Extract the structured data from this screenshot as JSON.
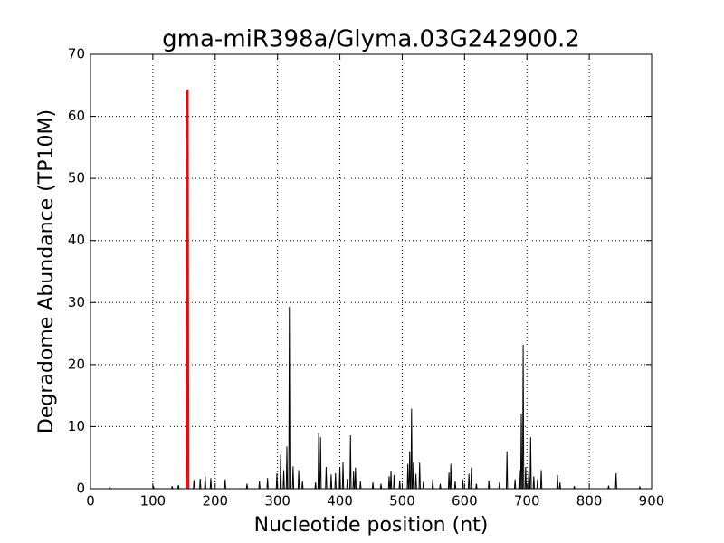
{
  "chart_data": {
    "type": "line",
    "title": "gma-miR398a/Glyma.03G242900.2",
    "x_label": "Nucleotide position (nt)",
    "y_label": "Degradome Abundance (TP10M)",
    "xlim": [
      0,
      900
    ],
    "xticks": [
      0,
      100,
      200,
      300,
      400,
      500,
      600,
      700,
      800,
      900
    ],
    "ylim": [
      0,
      70
    ],
    "yticks": [
      0,
      10,
      20,
      30,
      40,
      50,
      60,
      70
    ],
    "grid": true,
    "series": [
      {
        "color": "#000000",
        "x": [
          1,
          30,
          31,
          32,
          100,
          101,
          102,
          130,
          131,
          132,
          140,
          141,
          142,
          165,
          166,
          167,
          175,
          176,
          177,
          183,
          184,
          185,
          192,
          193,
          194,
          215,
          216,
          217,
          250,
          251,
          252,
          270,
          271,
          272,
          283,
          284,
          285,
          298,
          299,
          300,
          304,
          305,
          306,
          309,
          310,
          311,
          314,
          315,
          316,
          318,
          319,
          320,
          324,
          325,
          326,
          333,
          334,
          335,
          339,
          340,
          341,
          360,
          361,
          362,
          365,
          366,
          367,
          368,
          369,
          370,
          377,
          378,
          379,
          385,
          386,
          387,
          392,
          393,
          394,
          399,
          400,
          401,
          404,
          405,
          406,
          411,
          412,
          413,
          416,
          417,
          418,
          421,
          422,
          423,
          424,
          425,
          426,
          432,
          433,
          434,
          452,
          453,
          454,
          465,
          466,
          467,
          478,
          479,
          480,
          481,
          482,
          483,
          486,
          487,
          488,
          495,
          496,
          497,
          508,
          509,
          510,
          511,
          512,
          513,
          514,
          515,
          516,
          517,
          518,
          519,
          521,
          522,
          523,
          527,
          528,
          529,
          533,
          534,
          535,
          548,
          549,
          550,
          560,
          561,
          562,
          574,
          575,
          576,
          577,
          578,
          579,
          584,
          585,
          586,
          596,
          597,
          598,
          606,
          607,
          608,
          610,
          611,
          612,
          618,
          619,
          620,
          638,
          639,
          640,
          655,
          656,
          657,
          667,
          668,
          669,
          680,
          681,
          682,
          687,
          688,
          689,
          690,
          691,
          692,
          693,
          694,
          695,
          697,
          698,
          699,
          702,
          703,
          704,
          705,
          706,
          707,
          710,
          711,
          712,
          716,
          717,
          718,
          722,
          723,
          724,
          748,
          749,
          750,
          752,
          753,
          754,
          775,
          776,
          777,
          830,
          831,
          832,
          842,
          843,
          844,
          880,
          881,
          882,
          897
        ],
        "values": [
          0,
          0,
          0.3,
          0,
          0,
          0.4,
          0,
          0,
          0.4,
          0,
          0,
          0.6,
          0,
          0,
          1.4,
          0,
          0,
          1.6,
          0,
          0,
          2.0,
          0,
          0,
          1.7,
          0,
          0,
          1.5,
          0,
          0,
          0.8,
          0,
          0,
          1.2,
          0,
          0,
          1.7,
          0,
          0,
          2.5,
          0,
          0,
          5.5,
          0,
          0,
          3.0,
          0,
          0,
          6.8,
          0,
          0,
          29.3,
          0,
          0,
          3.6,
          0,
          0,
          3.0,
          0,
          0,
          1.2,
          0,
          0,
          1.0,
          0,
          0,
          9.0,
          0,
          0,
          8.3,
          0,
          0,
          3.5,
          0,
          0,
          2.3,
          0,
          0,
          2.5,
          0,
          0,
          3.5,
          0,
          0,
          4.3,
          0,
          0,
          1.6,
          0,
          0,
          8.6,
          0,
          0,
          2.9,
          0,
          0,
          3.4,
          0,
          0,
          1.2,
          0,
          0,
          1.0,
          0,
          0,
          0.8,
          0,
          0,
          2.0,
          0,
          0,
          2.9,
          0,
          0,
          2.2,
          0,
          0,
          1.3,
          0,
          0,
          4.0,
          0,
          0,
          6.0,
          0,
          0,
          12.9,
          0,
          0,
          4.2,
          0,
          0,
          2.4,
          0,
          0,
          4.2,
          0,
          0,
          1.1,
          0,
          0,
          1.5,
          0,
          0,
          0.8,
          0,
          0,
          2.6,
          0,
          0,
          4.0,
          0,
          0,
          1.2,
          0,
          0,
          1.5,
          0,
          0,
          2.4,
          0,
          0,
          3.4,
          0,
          0,
          0.8,
          0,
          0,
          1.3,
          0,
          0,
          1.0,
          0,
          0,
          6.0,
          0,
          0,
          1.5,
          0,
          0,
          3.0,
          0,
          0,
          12.1,
          0,
          0,
          23.2,
          0,
          0,
          3.5,
          0,
          0,
          2.8,
          0,
          0,
          8.3,
          0,
          0,
          2.0,
          0,
          0,
          1.5,
          0,
          0,
          3.0,
          0,
          0,
          2.2,
          0,
          0,
          1.0,
          0,
          0,
          0.4,
          0,
          0,
          0.5,
          0,
          0,
          2.5,
          0,
          0,
          0.3,
          0,
          0
        ]
      },
      {
        "color": "#ff0000",
        "x": [
          154,
          155,
          156,
          157
        ],
        "values": [
          0,
          63.8,
          64.3,
          0
        ]
      }
    ]
  }
}
